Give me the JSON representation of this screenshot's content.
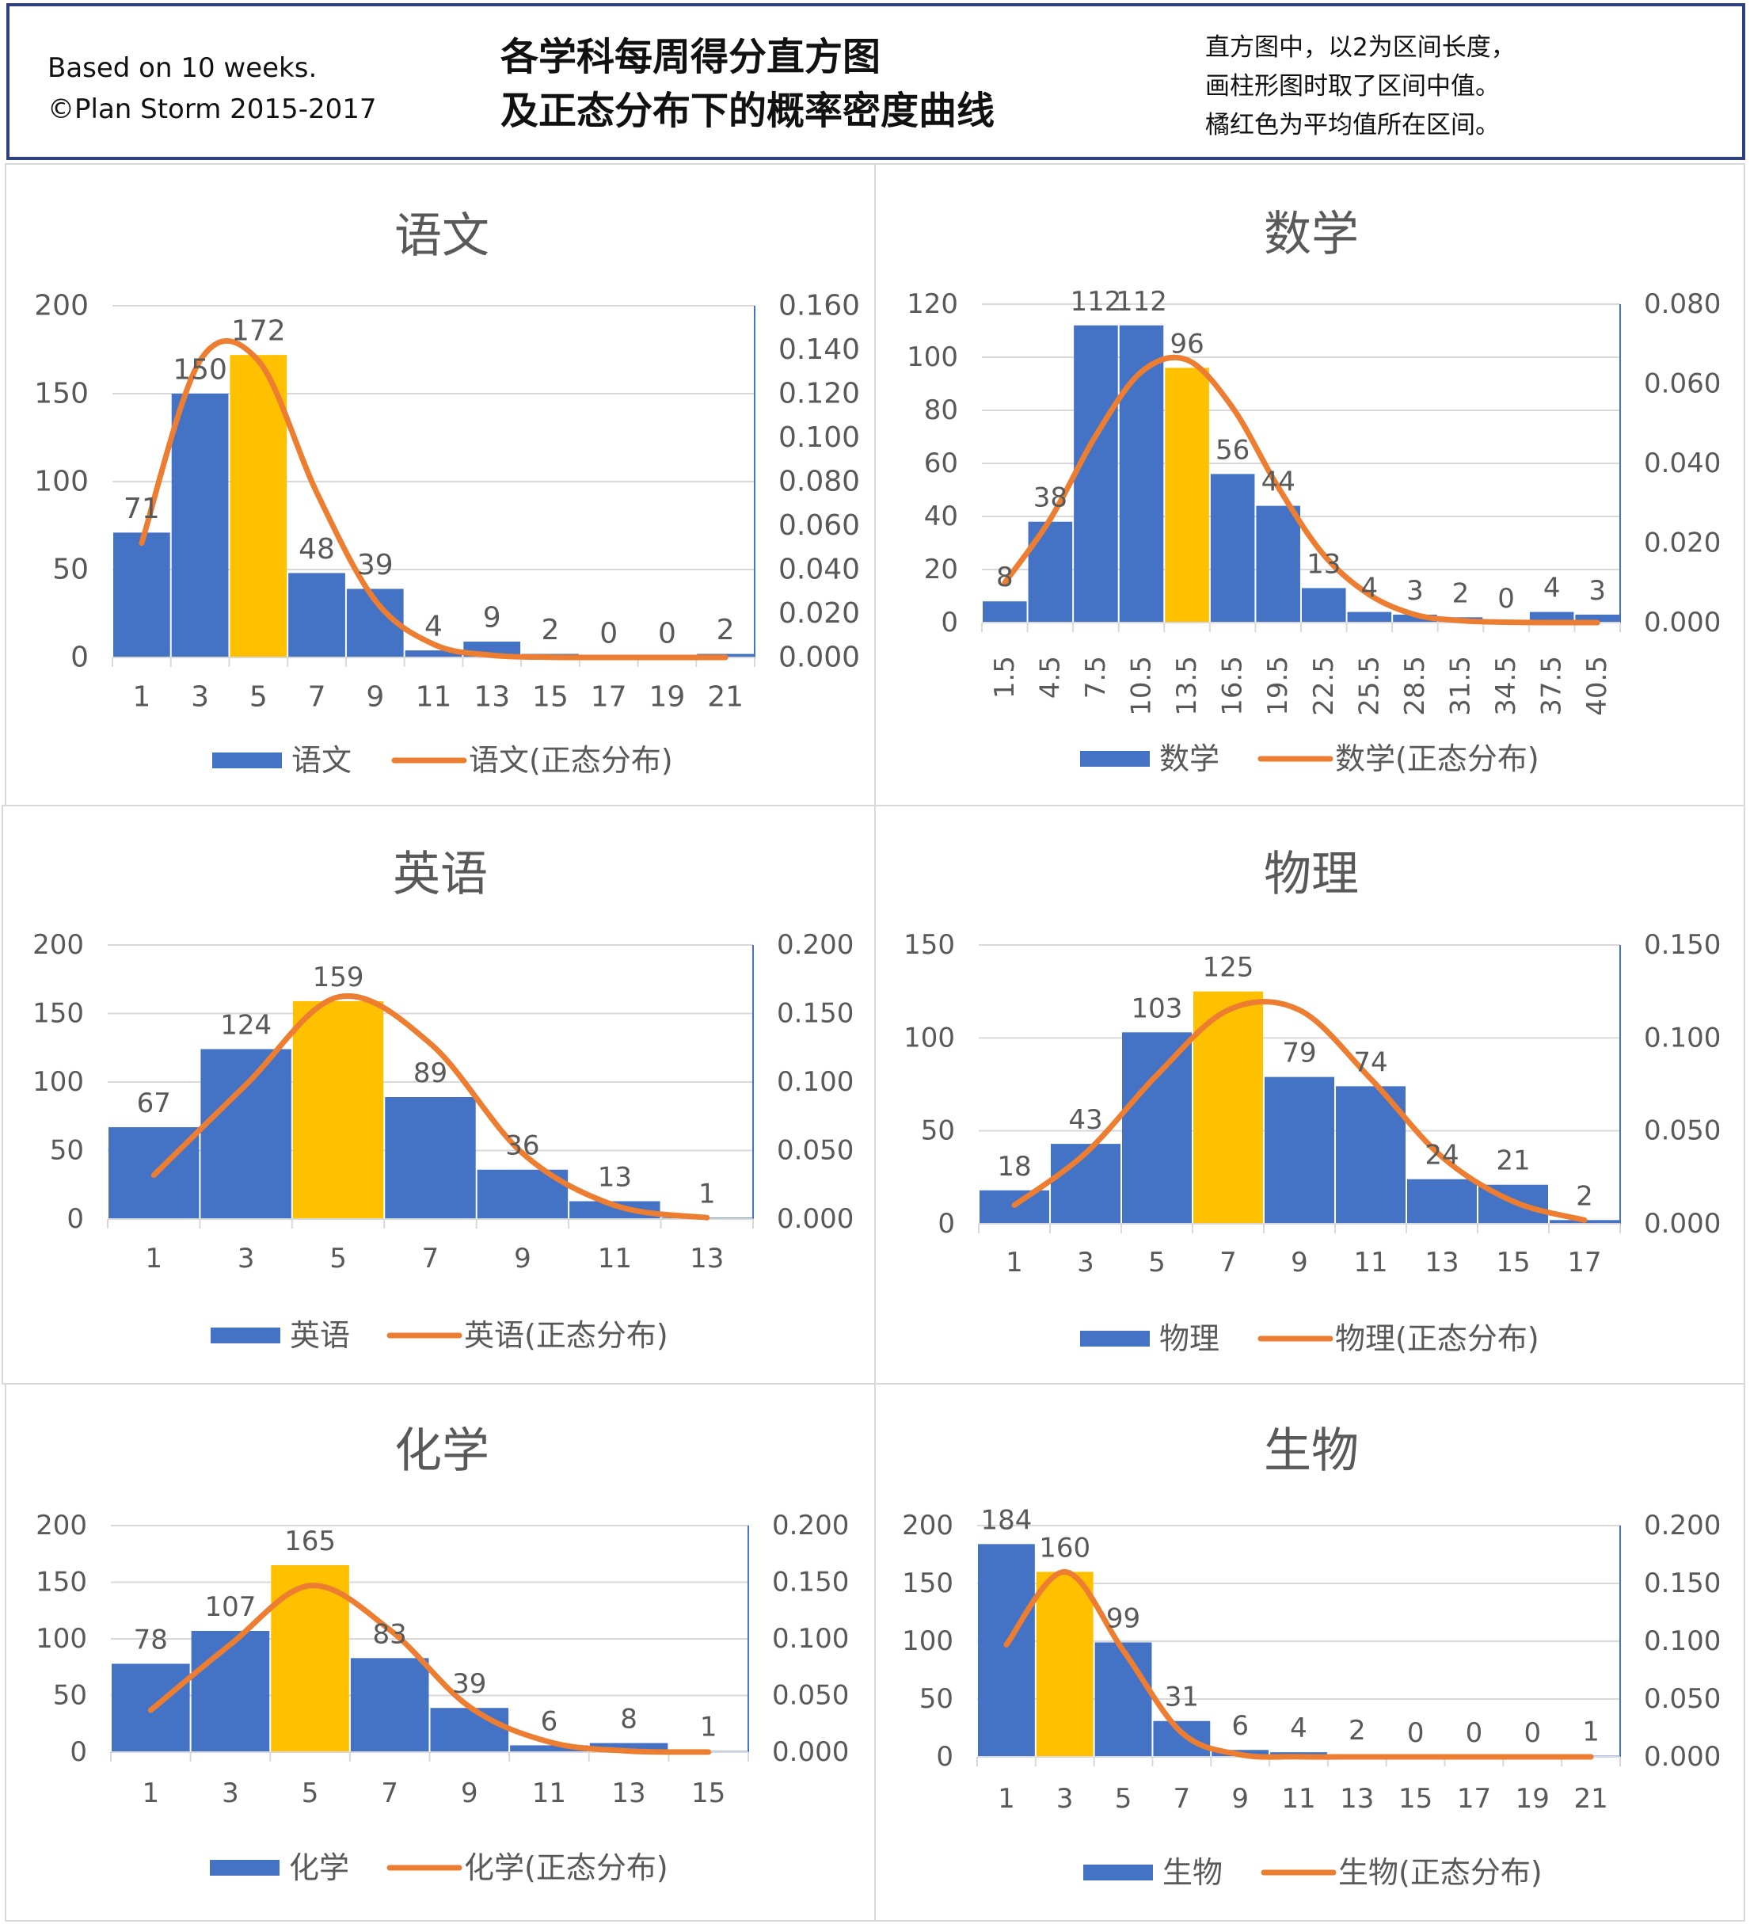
{
  "header": {
    "left_line1": "Based on 10 weeks.",
    "left_line2": "©Plan Storm 2015-2017",
    "title_line1": "各学科每周得分直方图",
    "title_line2": "及正态分布下的概率密度曲线",
    "note_line1": "直方图中，以2为区间长度，",
    "note_line2": "画柱形图时取了区间中值。",
    "note_line3": "橘红色为平均值所在区间。"
  },
  "colors": {
    "bar": "#4472c4",
    "highlight_bar": "#ffc000",
    "curve": "#ed7d31",
    "gridline": "#d9d9d9",
    "secondary_axis": "#4472c4",
    "text": "#595959"
  },
  "chart_data": [
    {
      "type": "bar",
      "title": "语文",
      "categories": [
        "1",
        "3",
        "5",
        "7",
        "9",
        "11",
        "13",
        "15",
        "17",
        "19",
        "21"
      ],
      "values": [
        71,
        150,
        172,
        48,
        39,
        4,
        9,
        2,
        0,
        0,
        2
      ],
      "highlight_index": 2,
      "ylim": [
        0,
        200
      ],
      "yticks": [
        "0",
        "50",
        "100",
        "150",
        "200"
      ],
      "y2lim": [
        0,
        0.16
      ],
      "y2ticks": [
        "0.000",
        "0.020",
        "0.040",
        "0.060",
        "0.080",
        "0.100",
        "0.120",
        "0.140",
        "0.160"
      ],
      "curve": [
        0.052,
        0.135,
        0.135,
        0.075,
        0.026,
        0.006,
        0.001,
        0.0001,
        0.0,
        0.0,
        0.0
      ],
      "rotated_xlabels": false,
      "series": [
        {
          "name": "语文"
        },
        {
          "name": "语文(正态分布)"
        }
      ]
    },
    {
      "type": "bar",
      "title": "数学",
      "categories": [
        "1.5",
        "4.5",
        "7.5",
        "10.5",
        "13.5",
        "16.5",
        "19.5",
        "22.5",
        "25.5",
        "28.5",
        "31.5",
        "34.5",
        "37.5",
        "40.5"
      ],
      "values": [
        8,
        38,
        112,
        112,
        96,
        56,
        44,
        13,
        4,
        3,
        2,
        0,
        4,
        3
      ],
      "highlight_index": 4,
      "ylim": [
        0,
        120
      ],
      "yticks": [
        "0",
        "20",
        "40",
        "60",
        "80",
        "100",
        "120"
      ],
      "y2lim": [
        0,
        0.08
      ],
      "y2ticks": [
        "0.000",
        "0.020",
        "0.040",
        "0.060",
        "0.080"
      ],
      "curve": [
        0.01,
        0.026,
        0.047,
        0.063,
        0.066,
        0.054,
        0.034,
        0.017,
        0.007,
        0.002,
        0.0005,
        0.0001,
        0.0,
        0.0
      ],
      "rotated_xlabels": true,
      "series": [
        {
          "name": "数学"
        },
        {
          "name": "数学(正态分布)"
        }
      ]
    },
    {
      "type": "bar",
      "title": "英语",
      "categories": [
        "1",
        "3",
        "5",
        "7",
        "9",
        "11",
        "13"
      ],
      "values": [
        67,
        124,
        159,
        89,
        36,
        13,
        1
      ],
      "highlight_index": 2,
      "ylim": [
        0,
        200
      ],
      "yticks": [
        "0",
        "50",
        "100",
        "150",
        "200"
      ],
      "y2lim": [
        0,
        0.2
      ],
      "y2ticks": [
        "0.000",
        "0.050",
        "0.100",
        "0.150",
        "0.200"
      ],
      "curve": [
        0.032,
        0.098,
        0.162,
        0.128,
        0.048,
        0.01,
        0.001
      ],
      "rotated_xlabels": false,
      "series": [
        {
          "name": "英语"
        },
        {
          "name": "英语(正态分布)"
        }
      ]
    },
    {
      "type": "bar",
      "title": "物理",
      "categories": [
        "1",
        "3",
        "5",
        "7",
        "9",
        "11",
        "13",
        "15",
        "17"
      ],
      "values": [
        18,
        43,
        103,
        125,
        79,
        74,
        24,
        21,
        2
      ],
      "highlight_index": 3,
      "ylim": [
        0,
        150
      ],
      "yticks": [
        "0",
        "50",
        "100",
        "150"
      ],
      "y2lim": [
        0,
        0.15
      ],
      "y2ticks": [
        "0.000",
        "0.050",
        "0.100",
        "0.150"
      ],
      "curve": [
        0.01,
        0.038,
        0.08,
        0.115,
        0.115,
        0.078,
        0.036,
        0.012,
        0.002
      ],
      "rotated_xlabels": false,
      "series": [
        {
          "name": "物理"
        },
        {
          "name": "物理(正态分布)"
        }
      ]
    },
    {
      "type": "bar",
      "title": "化学",
      "categories": [
        "1",
        "3",
        "5",
        "7",
        "9",
        "11",
        "13",
        "15"
      ],
      "values": [
        78,
        107,
        165,
        83,
        39,
        6,
        8,
        1
      ],
      "highlight_index": 2,
      "ylim": [
        0,
        200
      ],
      "yticks": [
        "0",
        "50",
        "100",
        "150",
        "200"
      ],
      "y2lim": [
        0,
        0.2
      ],
      "y2ticks": [
        "0.000",
        "0.050",
        "0.100",
        "0.150",
        "0.200"
      ],
      "curve": [
        0.037,
        0.095,
        0.147,
        0.108,
        0.04,
        0.009,
        0.001,
        0.0001
      ],
      "rotated_xlabels": false,
      "series": [
        {
          "name": "化学"
        },
        {
          "name": "化学(正态分布)"
        }
      ]
    },
    {
      "type": "bar",
      "title": "生物",
      "categories": [
        "1",
        "3",
        "5",
        "7",
        "9",
        "11",
        "13",
        "15",
        "17",
        "19",
        "21"
      ],
      "values": [
        184,
        160,
        99,
        31,
        6,
        4,
        2,
        0,
        0,
        0,
        1
      ],
      "highlight_index": 1,
      "ylim": [
        0,
        200
      ],
      "yticks": [
        "0",
        "50",
        "100",
        "150",
        "200"
      ],
      "y2lim": [
        0,
        0.2
      ],
      "y2ticks": [
        "0.000",
        "0.050",
        "0.100",
        "0.150",
        "0.200"
      ],
      "curve": [
        0.097,
        0.16,
        0.092,
        0.021,
        0.002,
        0.0001,
        0.0,
        0.0,
        0.0,
        0.0,
        0.0
      ],
      "rotated_xlabels": false,
      "series": [
        {
          "name": "生物"
        },
        {
          "name": "生物(正态分布)"
        }
      ]
    }
  ]
}
